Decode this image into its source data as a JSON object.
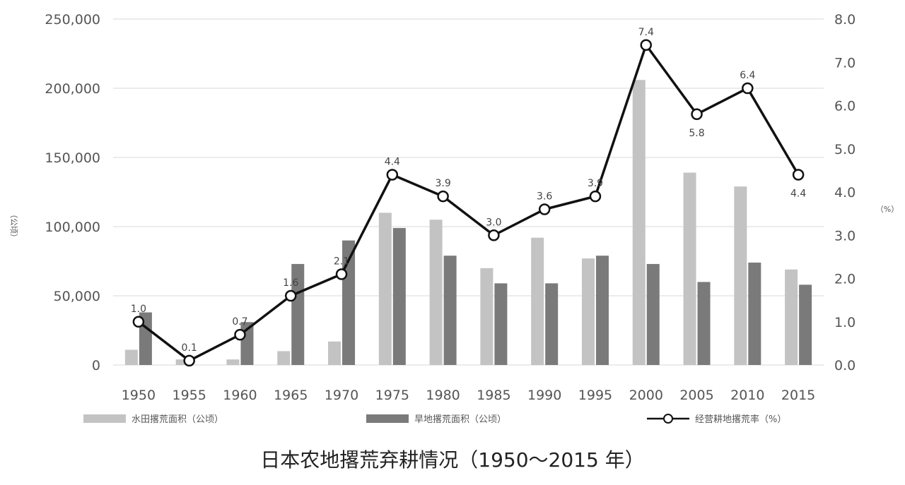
{
  "chart_data": {
    "type": "bar+line",
    "title": "日本农地撂荒弃耕情况（1950～2015 年）",
    "categories": [
      "1950",
      "1955",
      "1960",
      "1965",
      "1970",
      "1975",
      "1980",
      "1985",
      "1990",
      "1995",
      "2000",
      "2005",
      "2010",
      "2015"
    ],
    "series": [
      {
        "name": "水田撂荒面积（公顷）",
        "type": "bar",
        "axis": "left",
        "color": "#c3c3c3",
        "values": [
          11000,
          4000,
          4000,
          10000,
          17000,
          110000,
          105000,
          70000,
          92000,
          77000,
          206000,
          139000,
          129000,
          69000
        ]
      },
      {
        "name": "旱地撂荒面积（公顷）",
        "type": "bar",
        "axis": "left",
        "color": "#7a7a7a",
        "values": [
          38000,
          0,
          31000,
          73000,
          90000,
          99000,
          79000,
          59000,
          59000,
          79000,
          73000,
          60000,
          74000,
          58000
        ]
      },
      {
        "name": "经营耕地撂荒率（%）",
        "type": "line",
        "axis": "right",
        "color": "#111111",
        "values": [
          1.0,
          0.1,
          0.7,
          1.6,
          2.1,
          4.4,
          3.9,
          3.0,
          3.6,
          3.9,
          7.4,
          5.8,
          6.4,
          4.4
        ],
        "labels": [
          "1.0",
          "0.1",
          "0.7",
          "1.6",
          "2.1",
          "4.4",
          "3.9",
          "3.0",
          "3.6",
          "3.9",
          "7.4",
          "5.8",
          "6.4",
          "4.4"
        ]
      }
    ],
    "yleft": {
      "label": "（公顷）",
      "lim": [
        0,
        250000
      ],
      "ticks": [
        0,
        50000,
        100000,
        150000,
        200000,
        250000
      ],
      "tick_labels": [
        "0",
        "50,000",
        "100,000",
        "150,000",
        "200,000",
        "250,000"
      ]
    },
    "yright": {
      "label": "（%）",
      "lim": [
        0,
        8
      ],
      "ticks": [
        0,
        1,
        2,
        3,
        4,
        5,
        6,
        7,
        8
      ],
      "tick_labels": [
        "0.0",
        "1.0",
        "2.0",
        "3.0",
        "4.0",
        "5.0",
        "6.0",
        "7.0",
        "8.0"
      ]
    },
    "grid": true,
    "legend_position": "bottom"
  }
}
